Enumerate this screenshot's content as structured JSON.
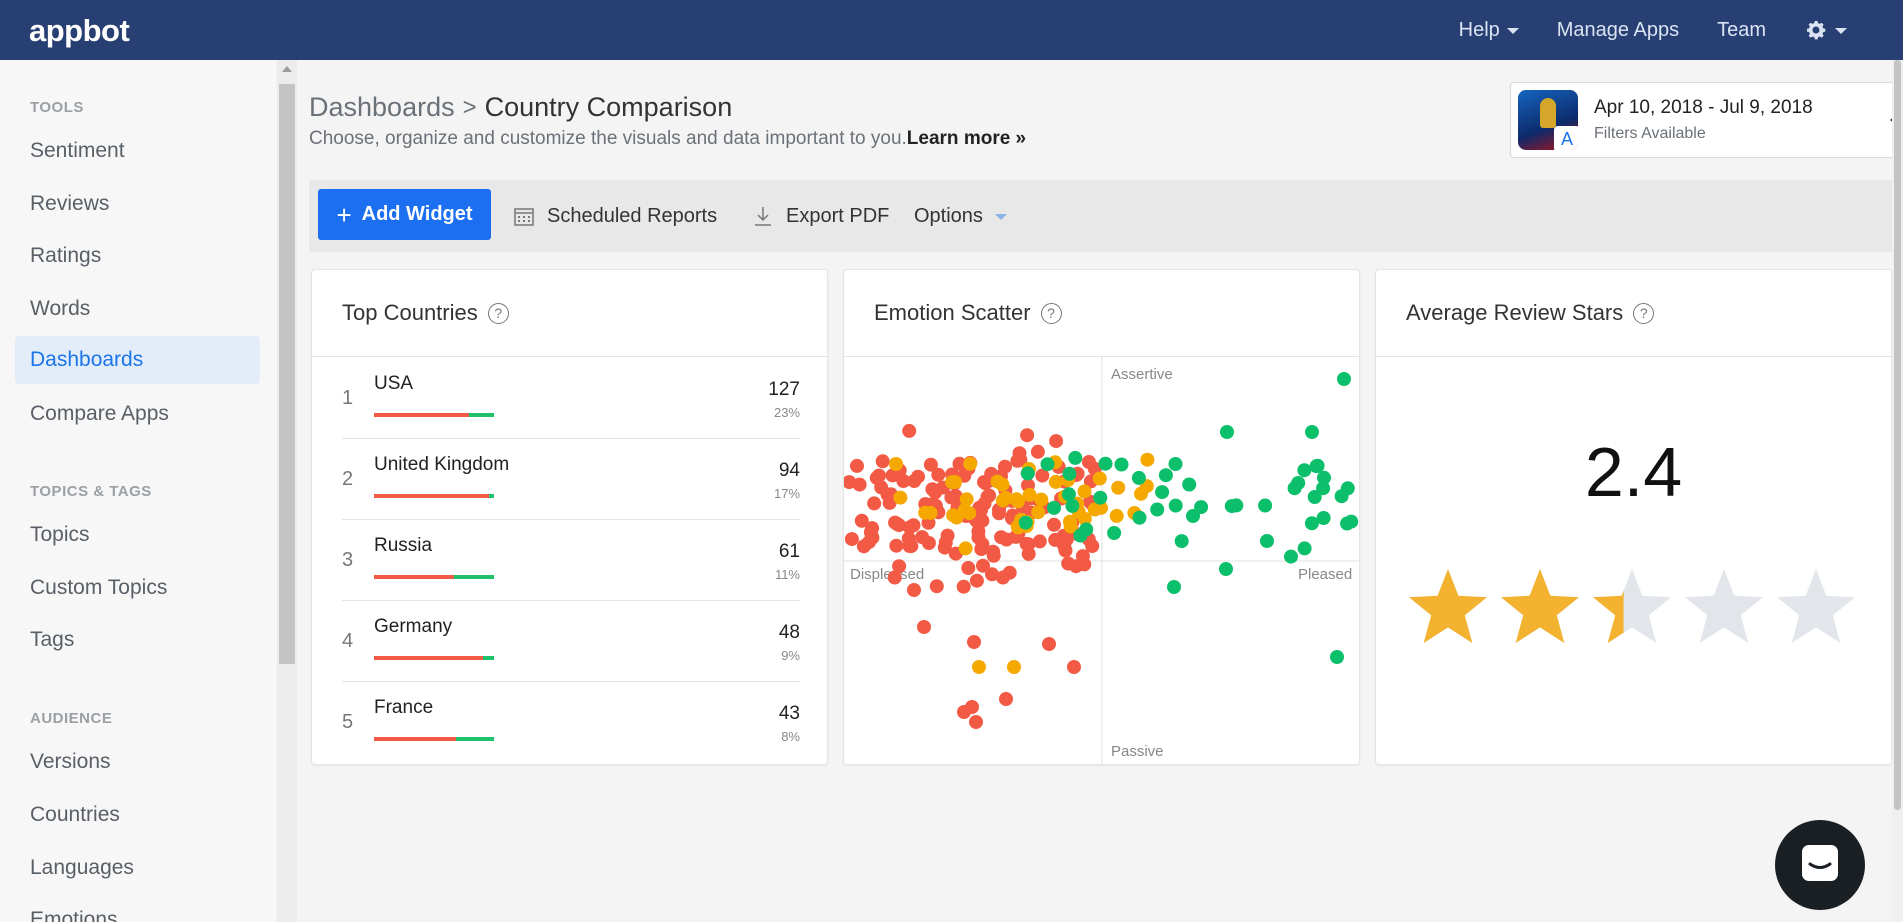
{
  "brand": {
    "logo": "appbot"
  },
  "topnav": {
    "help": "Help",
    "manage_apps": "Manage Apps",
    "team": "Team"
  },
  "sidebar": {
    "tools_heading": "TOOLS",
    "tools": [
      "Sentiment",
      "Reviews",
      "Ratings",
      "Words",
      "Dashboards",
      "Compare Apps"
    ],
    "topics_heading": "TOPICS & TAGS",
    "topics": [
      "Topics",
      "Custom Topics",
      "Tags"
    ],
    "audience_heading": "AUDIENCE",
    "audience": [
      "Versions",
      "Countries",
      "Languages",
      "Emotions"
    ],
    "active": "Dashboards"
  },
  "header": {
    "breadcrumb_root": "Dashboards",
    "breadcrumb_sep": ">",
    "title": "Country Comparison",
    "subtitle": "Choose, organize and customize the visuals and data important to you.",
    "learn_more": "Learn more »"
  },
  "app_selector": {
    "date_range": "Apr 10, 2018 - Jul 9, 2018",
    "filters": "Filters Available"
  },
  "toolbar": {
    "add_widget": "Add Widget",
    "scheduled_reports": "Scheduled Reports",
    "export_pdf": "Export PDF",
    "options": "Options"
  },
  "widgets": {
    "top_countries": {
      "title": "Top Countries",
      "rows": [
        {
          "rank": "1",
          "name": "USA",
          "count": "127",
          "pct": "23%",
          "neg_fraction": 0.79
        },
        {
          "rank": "2",
          "name": "United Kingdom",
          "count": "94",
          "pct": "17%",
          "neg_fraction": 0.96
        },
        {
          "rank": "3",
          "name": "Russia",
          "count": "61",
          "pct": "11%",
          "neg_fraction": 0.67
        },
        {
          "rank": "4",
          "name": "Germany",
          "count": "48",
          "pct": "9%",
          "neg_fraction": 0.91
        },
        {
          "rank": "5",
          "name": "France",
          "count": "43",
          "pct": "8%",
          "neg_fraction": 0.68
        }
      ],
      "colors": {
        "negative": "#f25a45",
        "positive": "#1fc16b"
      }
    },
    "emotion_scatter": {
      "title": "Emotion Scatter",
      "labels": {
        "top": "Assertive",
        "bottom": "Passive",
        "left": "Displeased",
        "right": "Pleased"
      },
      "colors": {
        "negative": "#f25a45",
        "neutral": "#f5a900",
        "positive": "#0cbf6b"
      }
    },
    "avg_stars": {
      "title": "Average Review Stars",
      "value": "2.4",
      "rating": 2.4,
      "max": 5,
      "colors": {
        "filled": "#f3b230",
        "empty": "#e2e6ea"
      }
    }
  },
  "colors": {
    "topbar": "#273f73",
    "accent": "#1d6ff2"
  }
}
